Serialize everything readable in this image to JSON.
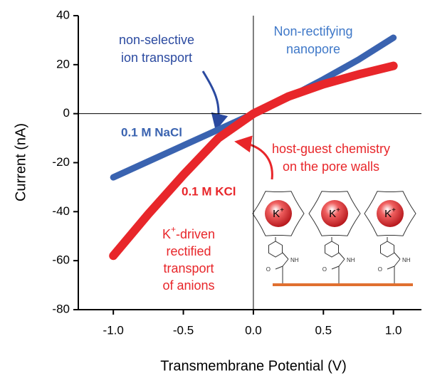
{
  "chart_data": {
    "type": "line",
    "x_label": "Transmembrane Potential (V)",
    "y_label": "Current (nA)",
    "x": [
      -1.0,
      -0.75,
      -0.5,
      -0.25,
      0.0,
      0.25,
      0.5,
      0.75,
      1.0
    ],
    "series": [
      {
        "name": "0.1 M NaCl",
        "color": "#3a63b0",
        "values": [
          -26,
          -19.5,
          -13,
          -6.5,
          0,
          6.5,
          14,
          22,
          31
        ]
      },
      {
        "name": "0.1 M KCl",
        "color": "#e8262a",
        "values": [
          -58,
          -41,
          -25,
          -10,
          0,
          7,
          12,
          16,
          19.5
        ]
      }
    ],
    "xlim": [
      -1.25,
      1.2
    ],
    "ylim": [
      -80,
      40
    ],
    "xticks": [
      {
        "value": -1.0,
        "label": "-1.0"
      },
      {
        "value": -0.5,
        "label": "-0.5"
      },
      {
        "value": 0,
        "label": "0.0"
      },
      0.5,
      {
        "value": 1.0,
        "label": "1.0"
      }
    ],
    "yticks": [
      -80,
      -60,
      -40,
      -20,
      0,
      20,
      40
    ],
    "zero_lines": true,
    "annotations": [
      {
        "lines": [
          "non-selective",
          "ion transport"
        ],
        "color": "#2b4aa0"
      },
      {
        "lines": [
          "Non-rectifying",
          "nanopore"
        ],
        "color": "#3f78c8"
      },
      {
        "lines": [
          "host-guest chemistry",
          "on the pore walls"
        ],
        "color": "#e8262a"
      }
    ],
    "kplus_annotation": {
      "ion": "K",
      "charge": "+",
      "lines": [
        "-driven",
        "rectified",
        "transport",
        "of anions"
      ],
      "color": "#e8262a"
    },
    "molecule": {
      "ion": "K",
      "charge": "+",
      "amine": "NH",
      "oxygen": "O"
    }
  }
}
